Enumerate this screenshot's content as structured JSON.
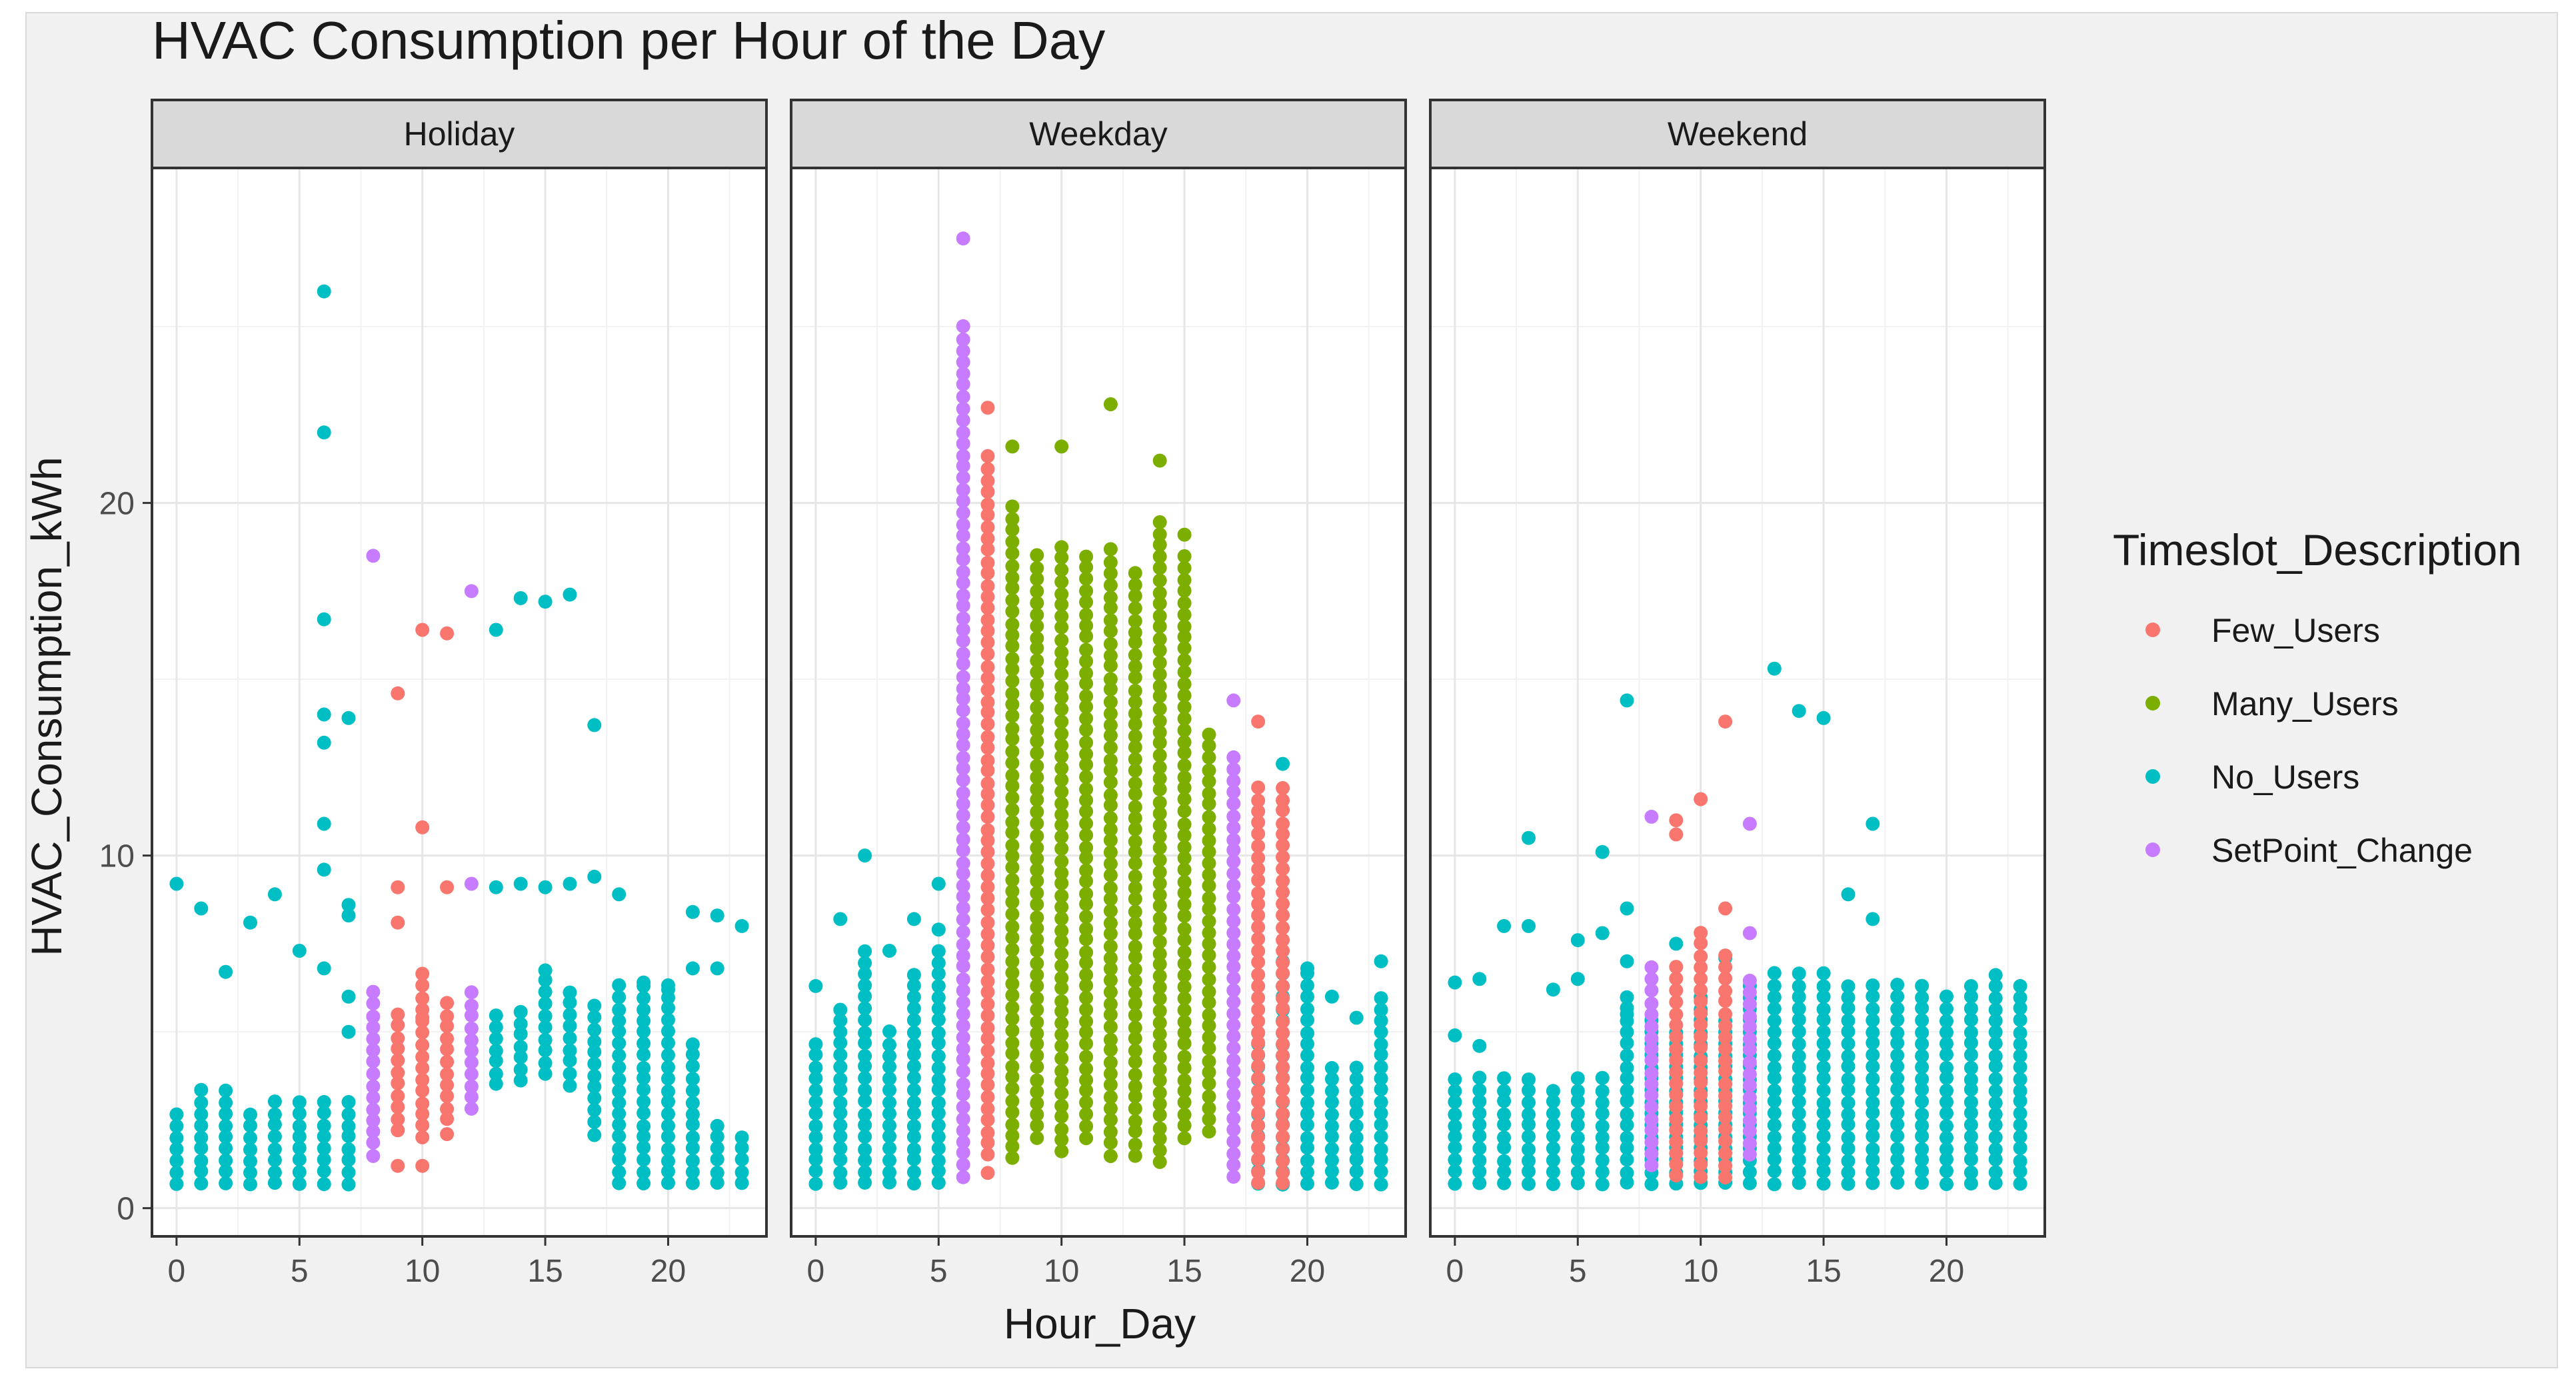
{
  "chart_data": {
    "type": "scatter",
    "title": "HVAC Consumption per Hour of the Day",
    "xlabel": "Hour_Day",
    "ylabel": "HVAC_Consumption_kWh",
    "xlim": [
      -1,
      24
    ],
    "ylim": [
      -0.8,
      29.5
    ],
    "x_ticks": [
      0,
      5,
      10,
      15,
      20
    ],
    "y_ticks": [
      0,
      10,
      20
    ],
    "grid": true,
    "facets": [
      "Holiday",
      "Weekday",
      "Weekend"
    ],
    "legend": {
      "title": "Timeslot_Description",
      "position": "right",
      "entries": [
        {
          "name": "Few_Users",
          "color": "#f8766d"
        },
        {
          "name": "Many_Users",
          "color": "#7cae00"
        },
        {
          "name": "No_Users",
          "color": "#00bfc4"
        },
        {
          "name": "SetPoint_Change",
          "color": "#c77cff"
        }
      ]
    },
    "series": {
      "Holiday": [
        {
          "class": "No_Users",
          "x": [
            0,
            1,
            2,
            3,
            4,
            5,
            6,
            7,
            13,
            14,
            15,
            16,
            17,
            18,
            19,
            20,
            21,
            22,
            23
          ],
          "range": [
            [
              0.7,
              2.7
            ],
            [
              0.7,
              3.5
            ],
            [
              0.7,
              3.4
            ],
            [
              0.7,
              3.0
            ],
            [
              0.7,
              3.2
            ],
            [
              0.7,
              3.2
            ],
            [
              0.7,
              3.3
            ],
            [
              0.7,
              3.1
            ],
            [
              3.5,
              5.8
            ],
            [
              3.6,
              5.9
            ],
            [
              3.8,
              6.8
            ],
            [
              3.5,
              6.3
            ],
            [
              2.1,
              6.0
            ],
            [
              0.7,
              6.4
            ],
            [
              0.7,
              6.5
            ],
            [
              0.7,
              6.6
            ],
            [
              0.7,
              4.7
            ],
            [
              0.7,
              2.5
            ],
            [
              0.7,
              2.2
            ]
          ]
        },
        {
          "class": "No_Users",
          "x": [
            0,
            1,
            2,
            3,
            4,
            5,
            6,
            6,
            6,
            6,
            6,
            6,
            6,
            6,
            7,
            7,
            7,
            7,
            7,
            13,
            13,
            14,
            14,
            15,
            15,
            16,
            16,
            17,
            17,
            18,
            19,
            20,
            21,
            21,
            22,
            22,
            23
          ],
          "y": [
            9.2,
            8.5,
            6.7,
            8.1,
            8.9,
            7.3,
            26.0,
            22.0,
            16.7,
            14.0,
            13.2,
            10.9,
            9.6,
            6.8,
            13.9,
            8.6,
            8.3,
            6.0,
            5.0,
            16.4,
            9.1,
            17.3,
            9.2,
            17.2,
            9.1,
            17.4,
            9.2,
            13.7,
            9.4,
            8.9,
            6.4,
            6.2,
            8.4,
            6.8,
            8.3,
            6.8,
            8.0
          ]
        },
        {
          "class": "Few_Users",
          "x": [
            9,
            10,
            11
          ],
          "range": [
            [
              2.2,
              5.8
            ],
            [
              2.0,
              6.7
            ],
            [
              2.5,
              5.8
            ]
          ]
        },
        {
          "class": "Few_Users",
          "x": [
            9,
            9,
            9,
            10,
            10,
            10,
            11,
            11,
            9,
            10,
            11
          ],
          "y": [
            14.6,
            9.1,
            8.1,
            16.4,
            10.8,
            1.2,
            16.3,
            9.1,
            1.2,
            5.4,
            2.1
          ]
        },
        {
          "class": "SetPoint_Change",
          "x": [
            8,
            12
          ],
          "range": [
            [
              1.5,
              6.4
            ],
            [
              2.8,
              6.4
            ]
          ]
        },
        {
          "class": "SetPoint_Change",
          "x": [
            8,
            12,
            12
          ],
          "y": [
            18.5,
            17.5,
            9.2
          ]
        }
      ],
      "Weekday": [
        {
          "class": "No_Users",
          "x": [
            0,
            1,
            2,
            3,
            4,
            5,
            18,
            19,
            20,
            21,
            22,
            23
          ],
          "range": [
            [
              0.7,
              4.7
            ],
            [
              0.7,
              5.8
            ],
            [
              0.7,
              7.6
            ],
            [
              0.7,
              5.0
            ],
            [
              0.7,
              6.8
            ],
            [
              0.7,
              7.6
            ],
            [
              0.7,
              5.0
            ],
            [
              0.7,
              7.1
            ],
            [
              0.7,
              6.8
            ],
            [
              0.7,
              4.2
            ],
            [
              0.7,
              4.3
            ],
            [
              0.7,
              6.2
            ]
          ]
        },
        {
          "class": "No_Users",
          "x": [
            0,
            1,
            2,
            3,
            4,
            5,
            5,
            19,
            20,
            21,
            22,
            23
          ],
          "y": [
            6.3,
            8.2,
            10.0,
            7.3,
            8.2,
            9.2,
            7.9,
            12.6,
            6.8,
            6.0,
            5.4,
            7.0
          ]
        },
        {
          "class": "SetPoint_Change",
          "x": [
            6,
            17
          ],
          "range": [
            [
              0.9,
              25.0
            ],
            [
              0.9,
              12.8
            ]
          ]
        },
        {
          "class": "SetPoint_Change",
          "x": [
            6,
            17
          ],
          "y": [
            27.5,
            14.4
          ]
        },
        {
          "class": "Few_Users",
          "x": [
            7,
            18,
            19
          ],
          "range": [
            [
              1.5,
              21.5
            ],
            [
              0.7,
              12.0
            ],
            [
              0.7,
              12.0
            ]
          ]
        },
        {
          "class": "Few_Users",
          "x": [
            7,
            7,
            18
          ],
          "y": [
            22.7,
            1.0,
            13.8
          ]
        },
        {
          "class": "Many_Users",
          "x": [
            8,
            9,
            10,
            11,
            12,
            13,
            14,
            15,
            16
          ],
          "range": [
            [
              1.4,
              20.0
            ],
            [
              2.0,
              18.6
            ],
            [
              1.6,
              18.8
            ],
            [
              2.0,
              18.5
            ],
            [
              1.5,
              18.7
            ],
            [
              1.5,
              18.3
            ],
            [
              1.3,
              19.5
            ],
            [
              2.0,
              18.7
            ],
            [
              2.2,
              13.6
            ]
          ]
        },
        {
          "class": "Many_Users",
          "x": [
            8,
            10,
            12,
            14,
            15
          ],
          "y": [
            21.6,
            21.6,
            22.8,
            21.2,
            19.1
          ]
        }
      ],
      "Weekend": [
        {
          "class": "No_Users",
          "x": [
            0,
            1,
            2,
            3,
            4,
            5,
            6,
            7,
            8,
            9,
            10,
            11,
            12,
            13,
            14,
            15,
            16,
            17,
            18,
            19,
            20,
            21,
            22,
            23
          ],
          "range": [
            [
              0.7,
              3.8
            ],
            [
              0.7,
              3.7
            ],
            [
              0.7,
              3.8
            ],
            [
              0.7,
              3.9
            ],
            [
              0.7,
              3.5
            ],
            [
              0.7,
              3.8
            ],
            [
              0.7,
              3.7
            ],
            [
              0.7,
              6.0
            ],
            [
              0.7,
              5.5
            ],
            [
              0.7,
              5.2
            ],
            [
              0.7,
              6.3
            ],
            [
              0.7,
              5.6
            ],
            [
              0.7,
              6.5
            ],
            [
              0.7,
              6.8
            ],
            [
              0.7,
              6.7
            ],
            [
              0.7,
              6.9
            ],
            [
              0.7,
              6.5
            ],
            [
              0.7,
              6.5
            ],
            [
              0.7,
              6.5
            ],
            [
              0.7,
              6.6
            ],
            [
              0.7,
              6.2
            ],
            [
              0.7,
              6.5
            ],
            [
              0.7,
              6.8
            ],
            [
              0.7,
              6.6
            ]
          ]
        },
        {
          "class": "No_Users",
          "x": [
            0,
            0,
            1,
            1,
            2,
            3,
            3,
            4,
            5,
            5,
            6,
            6,
            7,
            7,
            7,
            7,
            13,
            14,
            15,
            16,
            17,
            9,
            17,
            11
          ],
          "y": [
            6.4,
            4.9,
            6.5,
            4.6,
            8.0,
            10.5,
            8.0,
            6.2,
            7.6,
            6.5,
            10.1,
            7.8,
            14.4,
            8.5,
            7.0,
            5.5,
            15.3,
            14.1,
            13.9,
            8.9,
            10.9,
            7.5,
            8.2,
            7.1
          ]
        },
        {
          "class": "Few_Users",
          "x": [
            9,
            10,
            11
          ],
          "range": [
            [
              0.9,
              7.1
            ],
            [
              0.9,
              7.9
            ],
            [
              0.9,
              7.3
            ]
          ]
        },
        {
          "class": "Few_Users",
          "x": [
            9,
            9,
            10,
            11,
            11
          ],
          "y": [
            11.0,
            10.6,
            11.6,
            13.8,
            8.5
          ]
        },
        {
          "class": "SetPoint_Change",
          "x": [
            8,
            12
          ],
          "range": [
            [
              1.2,
              7.1
            ],
            [
              1.5,
              6.7
            ]
          ]
        },
        {
          "class": "SetPoint_Change",
          "x": [
            8,
            12,
            12
          ],
          "y": [
            11.1,
            10.9,
            7.8
          ]
        }
      ]
    }
  }
}
